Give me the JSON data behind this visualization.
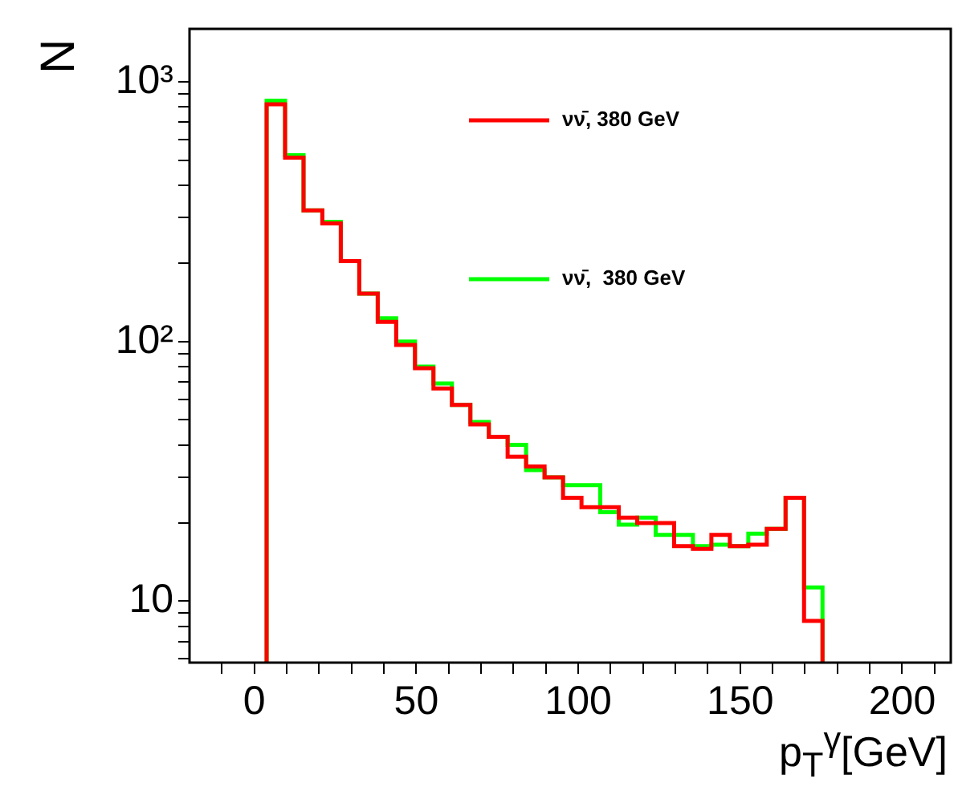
{
  "chart_data": {
    "type": "histogram",
    "xlabel": "p$_{T}$$^{γ}$[GeV]",
    "ylabel": "N",
    "bins": [
      3.8,
      9.5,
      15.2,
      21.0,
      26.7,
      32.4,
      38.1,
      43.8,
      49.6,
      55.3,
      61.0,
      66.7,
      72.4,
      78.2,
      83.9,
      89.6,
      95.3,
      101.0,
      106.8,
      112.5,
      118.2,
      123.9,
      129.6,
      135.4,
      141.1,
      146.8,
      152.5,
      158.2,
      164.0,
      169.7,
      175.4
    ],
    "series": [
      {
        "name": "νν̄, 380 GeV",
        "color": "#ff0000",
        "values": [
          820,
          511,
          320,
          285,
          204,
          153,
          119,
          97,
          79,
          66,
          57,
          48,
          43,
          36,
          33,
          30,
          25,
          23,
          23,
          21,
          20,
          20,
          16.3,
          15.9,
          18,
          16.3,
          16.5,
          19,
          25,
          8.4
        ]
      },
      {
        "name": "νν̄,  380 GeV",
        "color": "#00ff00",
        "values": [
          847,
          522,
          320,
          289,
          204,
          153,
          123,
          100,
          80,
          69,
          57,
          49,
          43,
          40,
          32,
          30,
          28,
          28,
          22,
          19.7,
          21,
          18,
          18,
          16.3,
          16.5,
          16.3,
          18.2,
          19,
          25,
          11.3
        ]
      }
    ],
    "xlim": [
      -20,
      215
    ],
    "xticks": [
      {
        "value": -10,
        "label": null
      },
      {
        "value": 0,
        "label": "0"
      },
      {
        "value": 10,
        "label": null
      },
      {
        "value": 20,
        "label": null
      },
      {
        "value": 30,
        "label": null
      },
      {
        "value": 40,
        "label": null
      },
      {
        "value": 50,
        "label": "50"
      },
      {
        "value": 60,
        "label": null
      },
      {
        "value": 70,
        "label": null
      },
      {
        "value": 80,
        "label": null
      },
      {
        "value": 90,
        "label": null
      },
      {
        "value": 100,
        "label": "100"
      },
      {
        "value": 110,
        "label": null
      },
      {
        "value": 120,
        "label": null
      },
      {
        "value": 130,
        "label": null
      },
      {
        "value": 140,
        "label": null
      },
      {
        "value": 150,
        "label": "150"
      },
      {
        "value": 160,
        "label": null
      },
      {
        "value": 170,
        "label": null
      },
      {
        "value": 180,
        "label": null
      },
      {
        "value": 190,
        "label": null
      },
      {
        "value": 200,
        "label": "200"
      },
      {
        "value": 210,
        "label": null
      }
    ],
    "ylim": [
      5.8,
      1600
    ],
    "yticks": [
      {
        "value": 6,
        "label": null
      },
      {
        "value": 7,
        "label": null
      },
      {
        "value": 8,
        "label": null
      },
      {
        "value": 9,
        "label": null
      },
      {
        "value": 10,
        "label": "10"
      },
      {
        "value": 20,
        "label": null
      },
      {
        "value": 30,
        "label": null
      },
      {
        "value": 40,
        "label": null
      },
      {
        "value": 50,
        "label": null
      },
      {
        "value": 60,
        "label": null
      },
      {
        "value": 70,
        "label": null
      },
      {
        "value": 80,
        "label": null
      },
      {
        "value": 90,
        "label": null
      },
      {
        "value": 100,
        "label": "10²"
      },
      {
        "value": 200,
        "label": null
      },
      {
        "value": 300,
        "label": null
      },
      {
        "value": 400,
        "label": null
      },
      {
        "value": 500,
        "label": null
      },
      {
        "value": 600,
        "label": null
      },
      {
        "value": 700,
        "label": null
      },
      {
        "value": 800,
        "label": null
      },
      {
        "value": 900,
        "label": null
      },
      {
        "value": 1000,
        "label": "10³"
      }
    ],
    "log": "y",
    "legend": "top right",
    "grid": false
  }
}
